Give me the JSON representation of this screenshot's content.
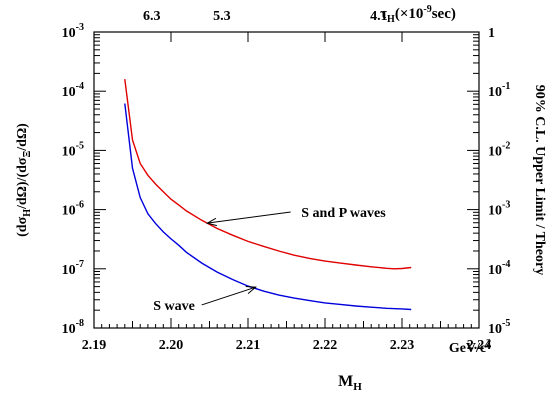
{
  "chart_data": {
    "type": "line",
    "xlabel": "M",
    "xlabel_sub": "H",
    "x_unit": "GeV/c",
    "x_unit_sup": "2",
    "xlim": [
      2.19,
      2.24
    ],
    "x_ticks": [
      2.19,
      2.2,
      2.21,
      2.22,
      2.23,
      2.24
    ],
    "x_tick_labels": [
      "2.19",
      "2.20",
      "2.21",
      "2.22",
      "2.23",
      "2.24"
    ],
    "y_scale": "log",
    "ylim": [
      1e-08,
      0.001
    ],
    "y_tick_exponents": [
      -8,
      -7,
      -6,
      -5,
      -4,
      -3
    ],
    "y_tick_base": "10",
    "ylabel": "(dσH/dΩ)/(dσΞ/dΩ)",
    "y2_scale": "log",
    "y2lim": [
      1e-05,
      1
    ],
    "y2_ticks": [
      {
        "base": "10",
        "exp": "-5"
      },
      {
        "base": "10",
        "exp": "-4"
      },
      {
        "base": "10",
        "exp": "-3"
      },
      {
        "base": "10",
        "exp": "-2"
      },
      {
        "base": "10",
        "exp": "-1"
      },
      {
        "base": "1",
        "exp": ""
      }
    ],
    "y2label": "90% C.L. Upper Limit / Theory",
    "top_axis_label": "τH(×10-9sec)",
    "top_ticks": [
      {
        "label": "6.3",
        "x": 2.1975
      },
      {
        "label": "5.3",
        "x": 2.2066
      },
      {
        "label": "4.1",
        "x": 2.227
      }
    ],
    "series": [
      {
        "name": "S and P waves",
        "color": "#e00000",
        "x": [
          2.194,
          2.195,
          2.196,
          2.197,
          2.198,
          2.199,
          2.2,
          2.201,
          2.202,
          2.204,
          2.206,
          2.208,
          2.21,
          2.212,
          2.214,
          2.216,
          2.218,
          2.22,
          2.222,
          2.224,
          2.226,
          2.228,
          2.229,
          2.23,
          2.2312
        ],
        "y": [
          0.00016,
          1.5e-05,
          6e-06,
          3.8e-06,
          2.7e-06,
          2e-06,
          1.5e-06,
          1.2e-06,
          9.5e-07,
          6.6e-07,
          4.8e-07,
          3.7e-07,
          2.9e-07,
          2.4e-07,
          2e-07,
          1.7e-07,
          1.5e-07,
          1.35e-07,
          1.25e-07,
          1.16e-07,
          1.08e-07,
          1.02e-07,
          1e-07,
          1.01e-07,
          1.05e-07
        ]
      },
      {
        "name": "S wave",
        "color": "#0000dd",
        "x": [
          2.194,
          2.195,
          2.196,
          2.197,
          2.198,
          2.199,
          2.2,
          2.201,
          2.202,
          2.204,
          2.206,
          2.208,
          2.21,
          2.212,
          2.214,
          2.216,
          2.218,
          2.22,
          2.222,
          2.224,
          2.226,
          2.228,
          2.23,
          2.2312
        ],
        "y": [
          6.2e-05,
          5e-06,
          1.6e-06,
          8.5e-07,
          5.8e-07,
          4.2e-07,
          3.2e-07,
          2.5e-07,
          1.9e-07,
          1.25e-07,
          8.8e-08,
          6.6e-08,
          5.1e-08,
          4.2e-08,
          3.6e-08,
          3.2e-08,
          2.9e-08,
          2.65e-08,
          2.5e-08,
          2.35e-08,
          2.25e-08,
          2.15e-08,
          2.1e-08,
          2.05e-08
        ]
      }
    ],
    "annotations": [
      {
        "text": "S and P waves",
        "series": 0,
        "text_x": 2.2224,
        "text_y": 9.1e-07,
        "arrow_to_x": 2.2047,
        "arrow_to_y": 5.9e-07
      },
      {
        "text": "S wave",
        "series": 1,
        "text_x": 2.2004,
        "text_y": 2.45e-08,
        "arrow_to_x": 2.211,
        "arrow_to_y": 4.9e-08
      }
    ]
  }
}
